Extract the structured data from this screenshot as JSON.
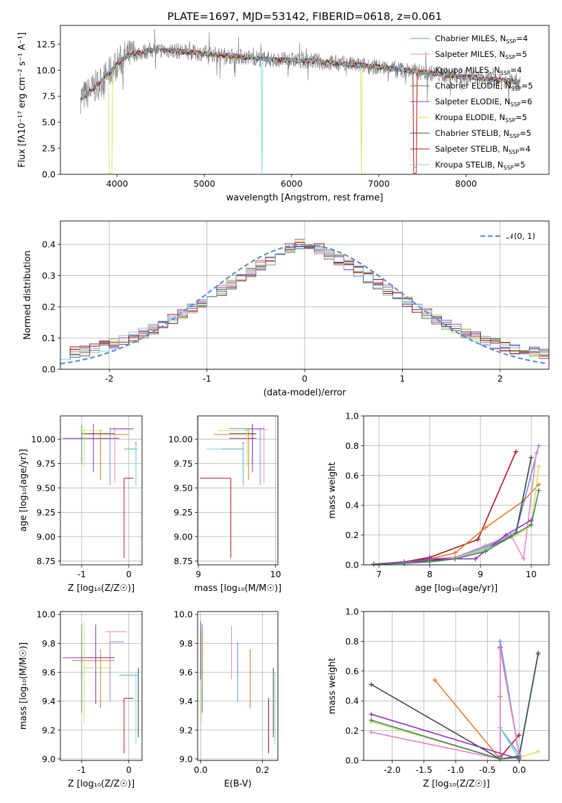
{
  "chart_data": [
    {
      "type": "line",
      "title": "PLATE=1697, MJD=53142, FIBERID=0618, z=0.061",
      "xlabel": "wavelength [Angstrom, rest frame]",
      "ylabel": "Flux [fλ10⁻¹⁷ erg cm⁻² s⁻¹ A⁻¹]",
      "xlim": [
        3350,
        8950
      ],
      "ylim": [
        0,
        14.3
      ],
      "xticks": [
        4000,
        5000,
        6000,
        7000,
        8000
      ],
      "yticks": [
        0.0,
        2.5,
        5.0,
        7.5,
        10.0,
        12.5
      ],
      "grid": false,
      "legend_position": "top-right",
      "continuum": {
        "x": [
          3600,
          3700,
          3800,
          3900,
          4000,
          4100,
          4200,
          4400,
          4600,
          5000,
          5400,
          5800,
          6200,
          6600,
          7000,
          7400,
          7800,
          8200,
          8600
        ],
        "y": [
          7.4,
          8.0,
          8.8,
          9.6,
          10.6,
          11.3,
          11.6,
          11.9,
          11.9,
          11.6,
          11.3,
          11.0,
          10.9,
          10.6,
          10.3,
          9.9,
          9.5,
          9.2,
          8.9
        ]
      },
      "series": [
        {
          "name": "Chabrier MILES, N_SSP=4",
          "color": "#6a8fd8"
        },
        {
          "name": "Salpeter MILES, N_SSP=5",
          "color": "#e78ac3"
        },
        {
          "name": "Kroupa MILES, N_SSP=4",
          "color": "#e07b25"
        },
        {
          "name": "Chabrier ELODIE, N_SSP=5",
          "color": "#4c7a6e"
        },
        {
          "name": "Salpeter ELODIE, N_SSP=6",
          "color": "#8e2fb8"
        },
        {
          "name": "Kroupa ELODIE, N_SSP=5",
          "color": "#c6e85a"
        },
        {
          "name": "Chabrier STELIB, N_SSP=5",
          "color": "#444444"
        },
        {
          "name": "Salpeter STELIB, N_SSP=4",
          "color": "#b0101a"
        },
        {
          "name": "Kroupa STELIB, N_SSP=5",
          "color": "#79d3e0"
        }
      ],
      "data_color": "#808080"
    },
    {
      "type": "line",
      "xlabel": "(data-model)/error",
      "ylabel": "Normed distribution",
      "xlim": [
        -2.5,
        2.5
      ],
      "ylim": [
        0,
        0.475
      ],
      "xticks": [
        -2,
        -1,
        0,
        1,
        2
      ],
      "yticks": [
        0.0,
        0.1,
        0.2,
        0.3,
        0.4
      ],
      "grid": true,
      "legend": "𝒩(0, 1)",
      "legend_position": "top-right",
      "reference_curve": "normal(0,1)",
      "reference_color": "#5b8ed6"
    },
    {
      "type": "scatter",
      "xlabel": "Z [log₁₀(Z/Z☉)]",
      "ylabel": "age  [log₁₀(age/yr)]",
      "xlim": [
        -1.45,
        0.28
      ],
      "ylim": [
        8.71,
        10.24
      ],
      "xticks": [
        -1,
        0
      ],
      "yticks": [
        8.75,
        9.0,
        9.25,
        9.5,
        9.75,
        10.0
      ],
      "grid": true
    },
    {
      "type": "scatter",
      "xlabel": "mass [log₁₀(M/M☉)]",
      "xlim": [
        8.99,
        10.03
      ],
      "ylim": [
        8.71,
        10.24
      ],
      "xticks": [
        9,
        10
      ],
      "yticks": [
        8.75,
        9.0,
        9.25,
        9.5,
        9.75,
        10.0
      ],
      "grid": true
    },
    {
      "type": "line",
      "xlabel": "age  [log₁₀(age/yr)]",
      "ylabel": "mass weight",
      "xlim": [
        6.7,
        10.35
      ],
      "ylim": [
        0,
        1.0
      ],
      "xticks": [
        7,
        8,
        9,
        10
      ],
      "yticks": [
        0.0,
        0.2,
        0.4,
        0.6,
        0.8,
        1.0
      ],
      "grid": true,
      "series": [
        {
          "color": "#b0101a",
          "x": [
            6.9,
            7.5,
            8.0,
            8.95,
            9.7
          ],
          "y": [
            0.005,
            0.02,
            0.05,
            0.17,
            0.76
          ]
        },
        {
          "color": "#e07b25",
          "x": [
            6.9,
            7.5,
            8.0,
            8.5,
            9.1,
            9.85,
            10.15
          ],
          "y": [
            0.005,
            0.02,
            0.04,
            0.08,
            0.25,
            0.43,
            0.54
          ]
        },
        {
          "color": "#6a8fd8",
          "x": [
            6.9,
            7.5,
            8.0,
            8.5,
            9.1,
            9.7,
            10.15
          ],
          "y": [
            0.005,
            0.015,
            0.04,
            0.05,
            0.12,
            0.22,
            0.8
          ]
        },
        {
          "color": "#79d3e0",
          "x": [
            6.9,
            7.5,
            8.0,
            8.5,
            9.1,
            9.7,
            10.0
          ],
          "y": [
            0.005,
            0.015,
            0.03,
            0.04,
            0.11,
            0.22,
            0.72
          ]
        },
        {
          "color": "#444444",
          "x": [
            6.9,
            7.5,
            8.0,
            8.5,
            9.1,
            9.7,
            10.0
          ],
          "y": [
            0.005,
            0.012,
            0.03,
            0.04,
            0.1,
            0.21,
            0.72
          ]
        },
        {
          "color": "#e78ac3",
          "x": [
            6.9,
            7.5,
            8.0,
            8.5,
            9.1,
            9.6,
            9.85,
            10.1
          ],
          "y": [
            0.005,
            0.015,
            0.04,
            0.05,
            0.13,
            0.2,
            0.04,
            0.75
          ]
        },
        {
          "color": "#8e2fb8",
          "x": [
            6.9,
            7.5,
            8.0,
            8.5,
            8.9,
            9.5,
            10.0
          ],
          "y": [
            0.005,
            0.02,
            0.04,
            0.04,
            0.04,
            0.2,
            0.3
          ]
        },
        {
          "color": "#c6e85a",
          "x": [
            6.9,
            7.5,
            8.0,
            8.5,
            9.1,
            9.7,
            10.0,
            10.15
          ],
          "y": [
            0.003,
            0.01,
            0.02,
            0.04,
            0.1,
            0.2,
            0.26,
            0.66
          ]
        },
        {
          "color": "#4c7a6e",
          "x": [
            6.9,
            7.5,
            8.0,
            8.5,
            9.1,
            9.6,
            10.0,
            10.15
          ],
          "y": [
            0.003,
            0.01,
            0.02,
            0.04,
            0.09,
            0.19,
            0.27,
            0.5
          ]
        }
      ]
    },
    {
      "type": "scatter",
      "xlabel": "Z [log₁₀(Z/Z☉)]",
      "ylabel": "mass [log₁₀(M/M☉)]",
      "xlim": [
        -1.45,
        0.28
      ],
      "ylim": [
        8.99,
        10.02
      ],
      "xticks": [
        -1,
        0
      ],
      "yticks": [
        9.0,
        9.2,
        9.4,
        9.6,
        9.8,
        10.0
      ],
      "grid": true
    },
    {
      "type": "scatter",
      "xlabel": "E(B-V)",
      "xlim": [
        -0.01,
        0.25
      ],
      "ylim": [
        8.99,
        10.02
      ],
      "xticks": [
        0.0,
        0.2
      ],
      "yticks": [
        9.0,
        9.2,
        9.4,
        9.6,
        9.8,
        10.0
      ],
      "grid": true
    },
    {
      "type": "line",
      "xlabel": "Z [log₁₀(Z/Z☉)]",
      "ylabel": "mass weight",
      "xlim": [
        -2.45,
        0.47
      ],
      "ylim": [
        0,
        1.0
      ],
      "xticks": [
        -2.0,
        -1.5,
        -1.0,
        -0.5,
        0.0
      ],
      "yticks": [
        0.0,
        0.2,
        0.4,
        0.6,
        0.8,
        1.0
      ],
      "grid": true,
      "series": [
        {
          "color": "#b0101a",
          "x": [
            -0.3,
            -0.3,
            -0.3,
            0.0
          ],
          "y": [
            0.03,
            0.76,
            0.02,
            0.17
          ]
        },
        {
          "color": "#e07b25",
          "x": [
            -1.33,
            -0.3,
            -0.3,
            -0.3
          ],
          "y": [
            0.54,
            0.01,
            0.43,
            0.02
          ]
        },
        {
          "color": "#6a8fd8",
          "x": [
            -2.33,
            -0.3,
            -0.3,
            0.0,
            -0.3
          ],
          "y": [
            0.19,
            0.01,
            0.8,
            0.04,
            0.22
          ]
        },
        {
          "color": "#79d3e0",
          "x": [
            -0.3,
            0.0,
            0.3
          ],
          "y": [
            0.22,
            0.01,
            0.71
          ]
        },
        {
          "color": "#444444",
          "x": [
            -2.33,
            -0.3,
            0.0,
            0.3
          ],
          "y": [
            0.51,
            0.01,
            0.03,
            0.72
          ]
        },
        {
          "color": "#e78ac3",
          "x": [
            -2.33,
            -0.3,
            -0.3,
            0.0
          ],
          "y": [
            0.19,
            0.01,
            0.75,
            0.04
          ]
        },
        {
          "color": "#8e2fb8",
          "x": [
            -2.33,
            0.0
          ],
          "y": [
            0.31,
            0.01
          ]
        },
        {
          "color": "#c6e85a",
          "x": [
            -2.33,
            -0.3,
            0.0,
            0.3
          ],
          "y": [
            0.26,
            0.01,
            0.02,
            0.06
          ]
        },
        {
          "color": "#4c7a6e",
          "x": [
            -2.33,
            -0.3,
            0.0
          ],
          "y": [
            0.27,
            0.01,
            0.02
          ]
        }
      ]
    }
  ],
  "error_bars": {
    "agez": [
      {
        "color": "#6a8fd8",
        "x": -0.4,
        "xlo": -0.4,
        "xhi": 0.1,
        "y": 10.11,
        "ylo": 9.53,
        "yhi": 10.12
      },
      {
        "color": "#e78ac3",
        "x": -0.3,
        "xlo": -0.4,
        "xhi": 0.1,
        "y": 10.1,
        "ylo": 9.55,
        "yhi": 10.13
      },
      {
        "color": "#e07b25",
        "x": -0.6,
        "xlo": -1.0,
        "xhi": 0.0,
        "y": 10.05,
        "ylo": 9.58,
        "yhi": 10.1
      },
      {
        "color": "#4c7a6e",
        "x": -1.0,
        "xlo": -1.0,
        "xhi": -0.3,
        "y": 10.06,
        "ylo": 9.75,
        "yhi": 10.15
      },
      {
        "color": "#8e2fb8",
        "x": -0.75,
        "xlo": -1.4,
        "xhi": -0.2,
        "y": 10.01,
        "ylo": 9.66,
        "yhi": 10.16
      },
      {
        "color": "#c6e85a",
        "x": -0.95,
        "xlo": -1.05,
        "xhi": -0.55,
        "y": 10.09,
        "ylo": 9.72,
        "yhi": 10.12
      },
      {
        "color": "#444444",
        "x": 0.15,
        "xlo": -0.1,
        "xhi": 0.15,
        "y": 9.9,
        "ylo": 9.55,
        "yhi": 9.97
      },
      {
        "color": "#b0101a",
        "x": -0.1,
        "xlo": -0.1,
        "xhi": 0.1,
        "y": 9.6,
        "ylo": 8.78,
        "yhi": 9.6
      },
      {
        "color": "#79d3e0",
        "x": 0.15,
        "xlo": -0.1,
        "xhi": 0.2,
        "y": 9.9,
        "ylo": 9.52,
        "yhi": 9.95
      }
    ],
    "agemass": [
      {
        "color": "#6a8fd8",
        "x": 9.8,
        "xlo": 9.4,
        "xhi": 9.85,
        "y": 10.11,
        "ylo": 9.53,
        "yhi": 10.12
      },
      {
        "color": "#e78ac3",
        "x": 9.85,
        "xlo": 9.6,
        "xhi": 9.9,
        "y": 10.1,
        "ylo": 9.55,
        "yhi": 10.13
      },
      {
        "color": "#e07b25",
        "x": 9.65,
        "xlo": 9.2,
        "xhi": 9.75,
        "y": 10.05,
        "ylo": 9.58,
        "yhi": 10.1
      },
      {
        "color": "#4c7a6e",
        "x": 9.7,
        "xlo": 9.4,
        "xhi": 9.75,
        "y": 10.06,
        "ylo": 9.75,
        "yhi": 10.15
      },
      {
        "color": "#8e2fb8",
        "x": 9.7,
        "xlo": 9.4,
        "xhi": 9.75,
        "y": 10.01,
        "ylo": 9.66,
        "yhi": 10.16
      },
      {
        "color": "#c6e85a",
        "x": 9.63,
        "xlo": 9.25,
        "xhi": 9.65,
        "y": 10.09,
        "ylo": 9.72,
        "yhi": 10.12
      },
      {
        "color": "#444444",
        "x": 9.58,
        "xlo": 9.3,
        "xhi": 9.58,
        "y": 9.9,
        "ylo": 9.55,
        "yhi": 9.97
      },
      {
        "color": "#b0101a",
        "x": 9.42,
        "xlo": 9.02,
        "xhi": 9.42,
        "y": 9.6,
        "ylo": 8.78,
        "yhi": 9.6
      },
      {
        "color": "#79d3e0",
        "x": 9.58,
        "xlo": 9.1,
        "xhi": 9.6,
        "y": 9.9,
        "ylo": 9.52,
        "yhi": 9.95
      }
    ],
    "massz": [
      {
        "color": "#6a8fd8",
        "x": -0.4,
        "xlo": -0.4,
        "xhi": -0.1,
        "y": 9.81,
        "ylo": 9.4,
        "yhi": 9.81
      },
      {
        "color": "#e78ac3",
        "x": -0.4,
        "xlo": -0.5,
        "xhi": -0.05,
        "y": 9.88,
        "ylo": 9.46,
        "yhi": 9.88
      },
      {
        "color": "#e07b25",
        "x": -0.6,
        "xlo": -1.2,
        "xhi": -0.3,
        "y": 9.68,
        "ylo": 9.35,
        "yhi": 9.76
      },
      {
        "color": "#4c7a6e",
        "x": -1.0,
        "xlo": -1.0,
        "xhi": -0.3,
        "y": 9.7,
        "ylo": 9.32,
        "yhi": 9.93
      },
      {
        "color": "#8e2fb8",
        "x": -0.7,
        "xlo": -1.4,
        "xhi": -0.3,
        "y": 9.7,
        "ylo": 9.38,
        "yhi": 9.93
      },
      {
        "color": "#c6e85a",
        "x": -0.95,
        "xlo": -0.95,
        "xhi": -0.35,
        "y": 9.63,
        "ylo": 9.25,
        "yhi": 9.95
      },
      {
        "color": "#444444",
        "x": 0.2,
        "xlo": -0.2,
        "xhi": 0.2,
        "y": 9.58,
        "ylo": 9.15,
        "yhi": 9.63
      },
      {
        "color": "#b0101a",
        "x": -0.1,
        "xlo": -0.1,
        "xhi": 0.1,
        "y": 9.42,
        "ylo": 9.04,
        "yhi": 9.42
      },
      {
        "color": "#79d3e0",
        "x": 0.15,
        "xlo": -0.2,
        "xhi": 0.2,
        "y": 9.58,
        "ylo": 9.1,
        "yhi": 9.6
      }
    ],
    "massebv": [
      {
        "color": "#6a8fd8",
        "x": 0.12,
        "xlo": 0.12,
        "xhi": 0.12,
        "y": 9.81,
        "ylo": 9.4,
        "yhi": 9.81
      },
      {
        "color": "#e78ac3",
        "x": 0.1,
        "xlo": 0.1,
        "xhi": 0.1,
        "y": 9.88,
        "ylo": 9.55,
        "yhi": 9.92
      },
      {
        "color": "#e07b25",
        "x": 0.16,
        "xlo": 0.16,
        "xhi": 0.16,
        "y": 9.68,
        "ylo": 9.35,
        "yhi": 9.76
      },
      {
        "color": "#4c7a6e",
        "x": 0.005,
        "xlo": 0.005,
        "xhi": 0.005,
        "y": 9.7,
        "ylo": 9.32,
        "yhi": 9.93
      },
      {
        "color": "#8e2fb8",
        "x": 0.0,
        "xlo": 0.0,
        "xhi": 0.0,
        "y": 9.7,
        "ylo": 9.55,
        "yhi": 9.95
      },
      {
        "color": "#c6e85a",
        "x": 0.003,
        "xlo": 0.003,
        "xhi": 0.003,
        "y": 9.63,
        "ylo": 9.25,
        "yhi": 9.9
      },
      {
        "color": "#444444",
        "x": 0.235,
        "xlo": 0.235,
        "xhi": 0.235,
        "y": 9.58,
        "ylo": 9.15,
        "yhi": 9.63
      },
      {
        "color": "#b0101a",
        "x": 0.22,
        "xlo": 0.22,
        "xhi": 0.22,
        "y": 9.42,
        "ylo": 9.04,
        "yhi": 9.42
      },
      {
        "color": "#79d3e0",
        "x": 0.24,
        "xlo": 0.24,
        "xhi": 0.24,
        "y": 9.58,
        "ylo": 9.1,
        "yhi": 9.6
      }
    ]
  }
}
